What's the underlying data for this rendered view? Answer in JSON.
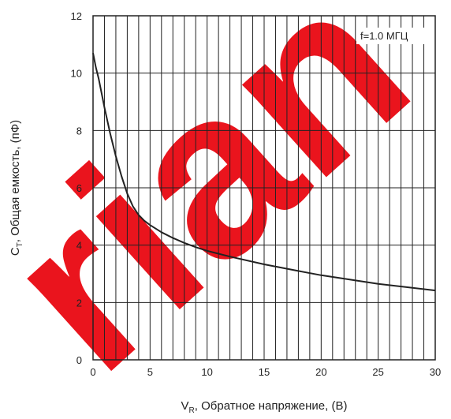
{
  "chart_data": {
    "type": "line",
    "title": "",
    "xlabel": {
      "symbol": "V",
      "subscript": "R",
      "text": ", Обратное напряжение, (В)"
    },
    "ylabel": {
      "symbol": "C",
      "subscript": "T",
      "text": ", Общая емкость, (пФ)"
    },
    "xlim": [
      0,
      30
    ],
    "ylim": [
      0,
      12
    ],
    "xticks": [
      "0",
      "5",
      "10",
      "15",
      "20",
      "25",
      "30"
    ],
    "yticks": [
      "0",
      "2",
      "4",
      "6",
      "8",
      "10",
      "12"
    ],
    "grid": true,
    "annotation": "f=1.0 МГЦ",
    "watermark": {
      "text": "rian",
      "color": "#e8000a"
    },
    "series": [
      {
        "color": "#222222",
        "x": [
          0,
          0.25,
          0.5,
          1,
          1.5,
          2,
          2.5,
          3,
          3.5,
          4,
          4.5,
          5,
          6,
          7,
          8,
          9,
          10,
          12,
          15,
          18,
          20,
          25,
          30
        ],
        "y": [
          10.7,
          10.2,
          9.8,
          8.8,
          7.9,
          7.1,
          6.4,
          5.8,
          5.35,
          5.05,
          4.85,
          4.7,
          4.45,
          4.25,
          4.08,
          3.93,
          3.8,
          3.6,
          3.33,
          3.1,
          2.95,
          2.65,
          2.42
        ]
      }
    ]
  }
}
